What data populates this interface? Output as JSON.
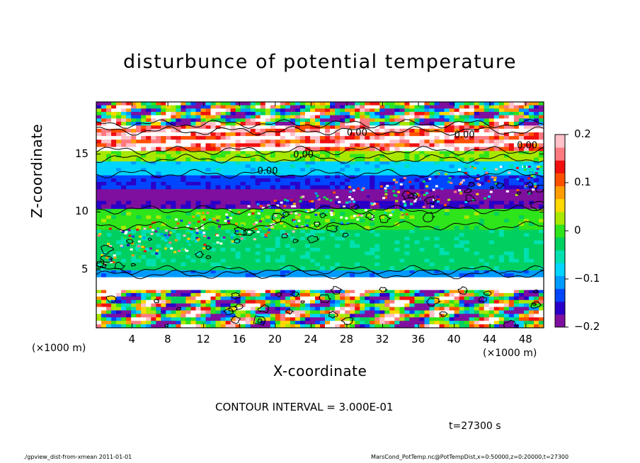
{
  "chart_data": {
    "type": "heatmap",
    "title": "disturbunce of potential temperature",
    "xlabel": "X-coordinate",
    "ylabel": "Z-coordinate",
    "x_unit_left": "(×1000 m)",
    "x_unit_right": "(×1000 m)",
    "xlim": [
      0,
      50
    ],
    "ylim": [
      0,
      19.5
    ],
    "x_ticks": [
      "4",
      "8",
      "12",
      "16",
      "20",
      "24",
      "28",
      "32",
      "36",
      "40",
      "44",
      "48"
    ],
    "y_ticks": [
      "5",
      "10",
      "15"
    ],
    "colorbar": {
      "range": [
        -0.2,
        0.2
      ],
      "ticks": [
        "0.2",
        "0.1",
        "0",
        "−0.1",
        "−0.2"
      ],
      "colors": [
        "#7f0f9f",
        "#2a00c8",
        "#0046ff",
        "#009bff",
        "#00d5ff",
        "#00e0b0",
        "#00d060",
        "#2ee41a",
        "#a8e800",
        "#ffd800",
        "#ff9c00",
        "#ff5000",
        "#f01010",
        "#ff7a80",
        "#ffc0c8"
      ]
    },
    "contour_labels": [
      "0.00",
      "0.00",
      "0.00",
      "0.00",
      "0.00"
    ],
    "contour_interval_text": "CONTOUR INTERVAL = 3.000E-01",
    "time_text": "t=27300 s",
    "footer_left": "./gpview_dist-from-xmean  2011-01-01",
    "footer_right": "MarsCond_PotTemp.nc@PotTempDist,x=0:50000,z=0:20000,t=27300",
    "bands": [
      {
        "z": [
          0,
          3.3
        ],
        "value": 0.0,
        "turbulent": true
      },
      {
        "z": [
          3.3,
          4.4
        ],
        "value": 0.25
      },
      {
        "z": [
          4.4,
          5.0
        ],
        "value": -0.11
      },
      {
        "z": [
          5.0,
          8.5
        ],
        "value": -0.03
      },
      {
        "z": [
          8.5,
          10.3
        ],
        "value": 0.0
      },
      {
        "z": [
          10.3,
          11.0
        ],
        "value": -0.17
      },
      {
        "z": [
          11.0,
          12.0
        ],
        "value": -0.2
      },
      {
        "z": [
          12.0,
          13.2
        ],
        "value": -0.14
      },
      {
        "z": [
          13.2,
          14.4
        ],
        "value": -0.08
      },
      {
        "z": [
          14.4,
          15.3
        ],
        "value": 0.02
      },
      {
        "z": [
          15.3,
          17.5
        ],
        "value": 0.3,
        "turbulent": true
      },
      {
        "z": [
          17.5,
          19.5
        ],
        "value": 0.0,
        "turbulent": true
      }
    ]
  }
}
